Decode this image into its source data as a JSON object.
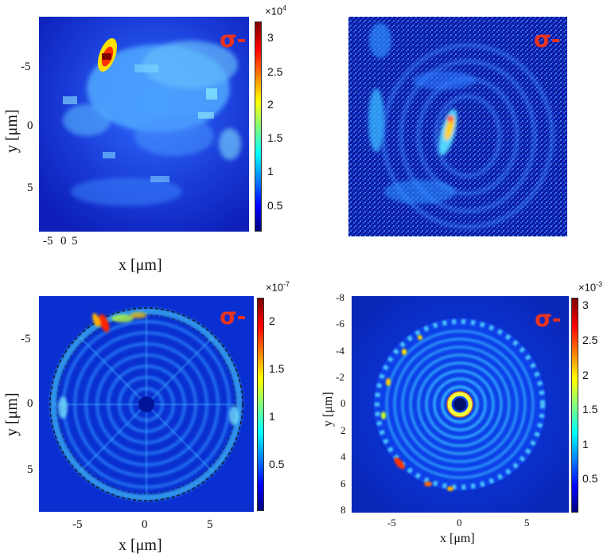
{
  "chart_data": [
    {
      "type": "heatmap",
      "panel": "top-left",
      "annotation": "σ-",
      "xlabel": "x [μm]",
      "ylabel": "y [μm]",
      "x_tick_labels": [
        "-5",
        "0",
        "5"
      ],
      "y_tick_labels": [
        "-5",
        "0",
        "5"
      ],
      "colorbar": {
        "multiplier": "×10",
        "exponent": "4",
        "ticks": [
          "0.5",
          "1",
          "1.5",
          "2",
          "2.5",
          "3"
        ],
        "range": [
          0.05,
          3.2
        ]
      },
      "colormap": "jet"
    },
    {
      "type": "heatmap",
      "panel": "top-right",
      "annotation": "σ-",
      "colormap": "jet"
    },
    {
      "type": "heatmap",
      "panel": "bottom-left",
      "annotation": "σ-",
      "xlabel": "x [μm]",
      "ylabel": "y [μm]",
      "x_tick_labels": [
        "-5",
        "0",
        "5"
      ],
      "y_tick_labels": [
        "-5",
        "0",
        "5"
      ],
      "colorbar": {
        "multiplier": "×10",
        "exponent": "-7",
        "ticks": [
          "0.5",
          "1",
          "1.5",
          "2"
        ],
        "range": [
          0.0,
          2.2
        ]
      },
      "colormap": "jet",
      "overlay": "dashed circle"
    },
    {
      "type": "heatmap",
      "panel": "bottom-right",
      "annotation": "σ-",
      "xlabel": "x [μm]",
      "ylabel": "y [μm]",
      "x_tick_labels": [
        "-5",
        "0",
        "5"
      ],
      "y_tick_labels": [
        "-8",
        "-6",
        "-4",
        "-2",
        "0",
        "2",
        "4",
        "6",
        "8"
      ],
      "colorbar": {
        "multiplier": "×10",
        "exponent": "-3",
        "ticks": [
          "0.5",
          "1",
          "1.5",
          "2",
          "2.5",
          "3"
        ],
        "range": [
          0.05,
          3.1
        ]
      },
      "colormap": "jet"
    }
  ],
  "colors": {
    "sigma": "#e8331f",
    "background_deep": "#0000a8",
    "ring": "#00c8ff",
    "hot": "#ff2000"
  }
}
